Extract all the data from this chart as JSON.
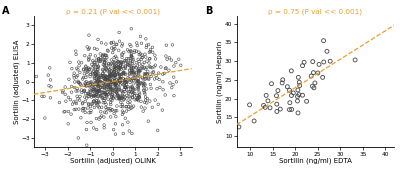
{
  "panel_A": {
    "label": "A",
    "n_points": 900,
    "seed": 42,
    "rho": 0.21,
    "xlim": [
      -3.5,
      3.5
    ],
    "ylim": [
      -3.5,
      3.5
    ],
    "xticks": [
      -3,
      -2,
      -1,
      0,
      1,
      2,
      3
    ],
    "yticks": [
      -3,
      -2,
      -1,
      0,
      1,
      2,
      3
    ],
    "xlabel": "Sortilin (adjusted) OLINK",
    "ylabel": "Sortilin (adjusted) ELISA",
    "annotation": "ρ = 0.21 (P val << 0.001)",
    "marker_size": 3.5,
    "marker_lw": 0.4
  },
  "panel_B": {
    "label": "B",
    "n_points": 50,
    "seed": 99,
    "rho": 0.75,
    "x_mean": 20,
    "x_std": 6,
    "y_mean": 22,
    "y_std": 6,
    "xlim": [
      7,
      42
    ],
    "ylim": [
      7,
      42
    ],
    "xticks": [
      10,
      15,
      20,
      25,
      30,
      35,
      40
    ],
    "yticks": [
      10,
      15,
      20,
      25,
      30,
      35,
      40
    ],
    "xlabel": "Sortilin (ng/ml) EDTA",
    "ylabel": "Sortilin (ng/ml) Heparin",
    "annotation": "ρ = 0.75 (P val << 0.001)",
    "marker_size": 8,
    "marker_lw": 0.6
  },
  "scatter_edgecolor": "#444444",
  "scatter_facecolor": "none",
  "line_color": "#E8A030",
  "line_style": "--",
  "bg_color": "#ffffff",
  "label_fontsize": 5.0,
  "tick_fontsize": 4.2,
  "annot_fontsize": 5.2,
  "panel_label_fontsize": 7,
  "spine_lw": 0.6
}
